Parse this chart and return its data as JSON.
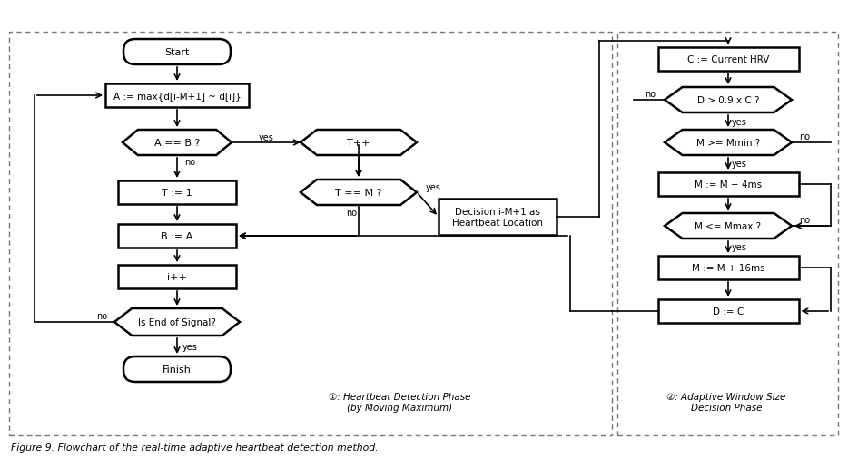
{
  "figsize": [
    9.34,
    5.06
  ],
  "dpi": 100,
  "bg_color": "#ffffff",
  "caption": "Figure 9. Flowchart of the real-time adaptive heartbeat detection method.",
  "label1": "①: Heartbeat Detection Phase\n(by Moving Maximum)",
  "label2": "②: Adaptive Window Size\nDecision Phase"
}
